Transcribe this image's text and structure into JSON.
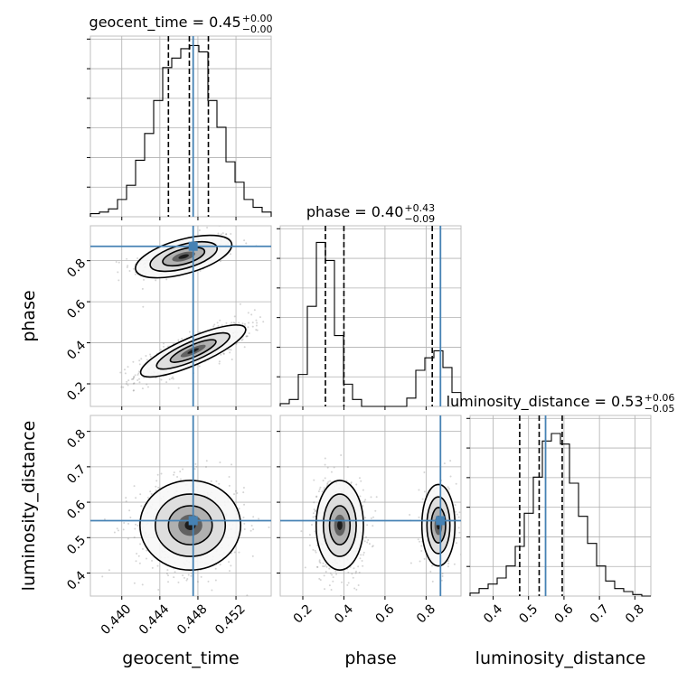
{
  "chart_data": {
    "type": "corner",
    "truth_color": "#4682b4",
    "parameters": [
      "geocent_time",
      "phase",
      "luminosity_distance"
    ],
    "truths": {
      "geocent_time": 0.4475,
      "phase": 0.87,
      "luminosity_distance": 0.548
    },
    "titles": [
      {
        "base": "geocent_time = 0.45",
        "sup": "+0.00",
        "sub": "−0.00"
      },
      {
        "base": "phase = 0.40",
        "sup": "+0.43",
        "sub": "−0.09"
      },
      {
        "base": "luminosity_distance = 0.53",
        "sup": "+0.06",
        "sub": "−0.05"
      }
    ],
    "axes": {
      "geocent_time": {
        "range": [
          0.4367,
          0.4557
        ],
        "ticks": [
          0.44,
          0.444,
          0.448,
          0.452
        ],
        "tick_labels": [
          "0.440",
          "0.444",
          "0.448",
          "0.452"
        ]
      },
      "phase": {
        "range": [
          0.09,
          0.97
        ],
        "ticks": [
          0.2,
          0.4,
          0.6,
          0.8
        ],
        "tick_labels": [
          "0.2",
          "0.4",
          "0.6",
          "0.8"
        ]
      },
      "luminosity_distance": {
        "range": [
          0.335,
          0.845
        ],
        "ticks": [
          0.4,
          0.5,
          0.6,
          0.7,
          0.8
        ],
        "tick_labels": [
          "0.4",
          "0.5",
          "0.6",
          "0.7",
          "0.8"
        ]
      }
    },
    "x_labels": [
      "geocent_time",
      "phase",
      "luminosity_distance"
    ],
    "y_labels": [
      "phase",
      "luminosity_distance"
    ],
    "histograms": [
      {
        "param": "geocent_time",
        "x_start": 0.4367,
        "bin_width": 0.00095,
        "counts": [
          2,
          3,
          5,
          11,
          20,
          36,
          53,
          74,
          95,
          101,
          107,
          109,
          105,
          74,
          57,
          35,
          22,
          11,
          6,
          3
        ],
        "quantiles": [
          0.4449,
          0.4471,
          0.4491
        ],
        "max": 115
      },
      {
        "param": "phase",
        "x_start": 0.09,
        "bin_width": 0.044,
        "counts": [
          2,
          5,
          23,
          72,
          118,
          105,
          51,
          16,
          5,
          0,
          0,
          0,
          0,
          0,
          6,
          26,
          35,
          40,
          28,
          10
        ],
        "quantiles": [
          0.31,
          0.4,
          0.83
        ],
        "max": 130
      },
      {
        "param": "luminosity_distance",
        "x_start": 0.335,
        "bin_width": 0.0255,
        "counts": [
          2,
          5,
          8,
          12,
          20,
          33,
          55,
          79,
          103,
          108,
          101,
          75,
          53,
          35,
          20,
          10,
          5,
          3,
          1,
          0
        ],
        "quantiles": [
          0.475,
          0.53,
          0.595
        ],
        "max": 120
      }
    ],
    "blobs": [
      {
        "x": "geocent_time",
        "y": "phase",
        "cx": 0.4465,
        "cy": 0.82,
        "sx": 0.0022,
        "sy": 0.045,
        "rho": 0.55,
        "w": 0.45
      },
      {
        "x": "geocent_time",
        "y": "phase",
        "cx": 0.4475,
        "cy": 0.36,
        "sx": 0.0024,
        "sy": 0.055,
        "rho": 0.82,
        "w": 1.0
      },
      {
        "x": "geocent_time",
        "y": "luminosity_distance",
        "cx": 0.4472,
        "cy": 0.535,
        "sx": 0.0023,
        "sy": 0.055,
        "rho": 0.0,
        "w": 1.0
      },
      {
        "x": "phase",
        "y": "luminosity_distance",
        "cx": 0.38,
        "cy": 0.535,
        "sx": 0.05,
        "sy": 0.055,
        "rho": 0.0,
        "w": 1.0
      },
      {
        "x": "phase",
        "y": "luminosity_distance",
        "cx": 0.86,
        "cy": 0.535,
        "sx": 0.035,
        "sy": 0.05,
        "rho": 0.0,
        "w": 0.38
      }
    ]
  }
}
